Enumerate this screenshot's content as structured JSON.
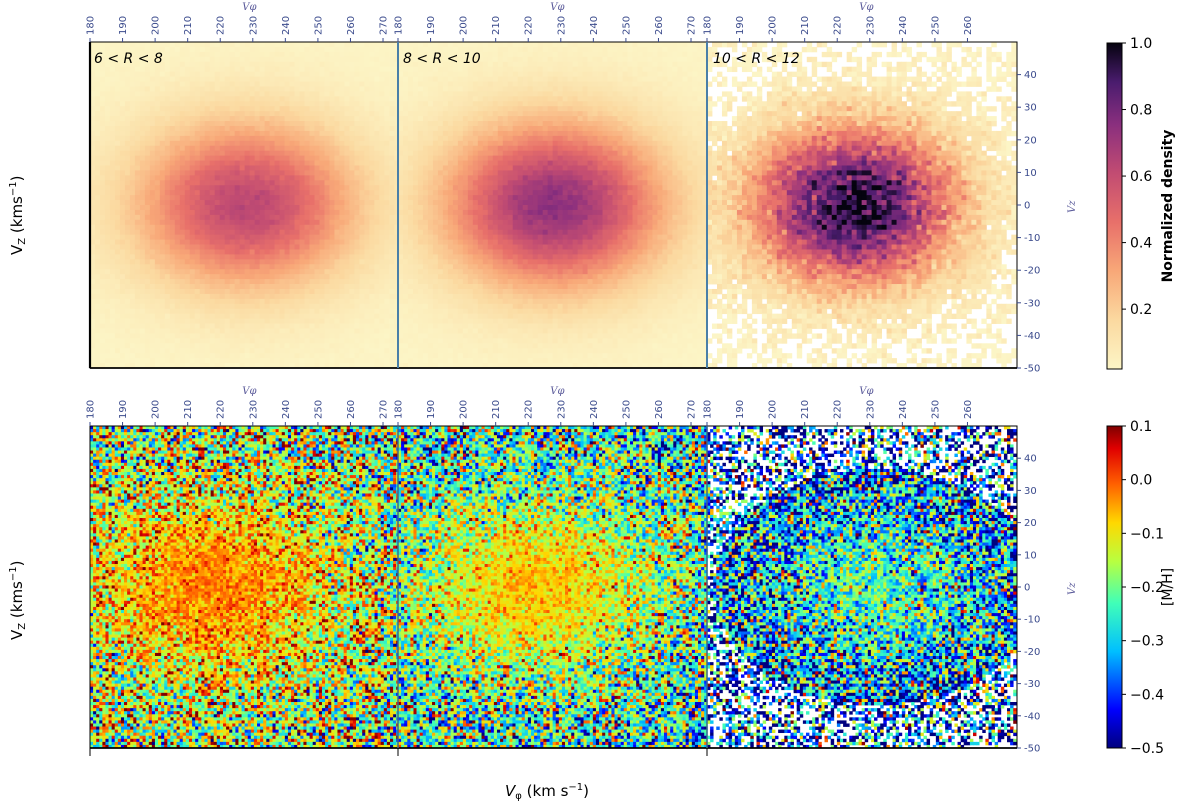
{
  "chart_data": [
    {
      "type": "heatmap",
      "panel": "top",
      "quantity": "Normalized density",
      "xlabel": "V_φ (km s⁻¹)",
      "ylabel": "V_Z (kms⁻¹)",
      "secondary_xlabel": "Vφ",
      "secondary_ylabel": "Vz",
      "xlim": [
        180,
        275
      ],
      "ylim": [
        -50,
        50
      ],
      "x_ticks": [
        180,
        190,
        200,
        210,
        220,
        230,
        240,
        250,
        260,
        270
      ],
      "x_ticks_last_panel": [
        180,
        190,
        200,
        210,
        220,
        230,
        240,
        250,
        260
      ],
      "y_ticks": [
        40,
        30,
        20,
        10,
        0,
        -10,
        -20,
        -30,
        -40,
        -50
      ],
      "subpanels": [
        {
          "label": "6 < R < 8",
          "peak_vphi": 228,
          "peak_vz": 0,
          "peak_value": 0.62
        },
        {
          "label": "8 < R < 10",
          "peak_vphi": 228,
          "peak_vz": 0,
          "peak_value": 0.74
        },
        {
          "label": "10 < R < 12",
          "peak_vphi": 225,
          "peak_vz": 0,
          "peak_value": 1.0
        }
      ],
      "colorbar": {
        "label": "Normalized density",
        "colormap": "magma_r",
        "ticks": [
          "1.0",
          "0.8",
          "0.6",
          "0.4",
          "0.2"
        ],
        "range": [
          0.0,
          1.0
        ]
      }
    },
    {
      "type": "heatmap",
      "panel": "bottom",
      "quantity": "[M/H]",
      "xlabel": "V_φ (km s⁻¹)",
      "ylabel": "V_Z (kms⁻¹)",
      "secondary_xlabel": "Vφ",
      "secondary_ylabel": "Vz",
      "xlim": [
        180,
        275
      ],
      "ylim": [
        -50,
        50
      ],
      "subpanels": [
        {
          "label": "6 < R < 8",
          "core_value": -0.02,
          "edge_value": -0.18
        },
        {
          "label": "8 < R < 10",
          "core_value": -0.07,
          "edge_value": -0.25
        },
        {
          "label": "10 < R < 12",
          "core_value": -0.22,
          "edge_value": -0.38
        }
      ],
      "colorbar": {
        "label": "[M/H]",
        "colormap": "jet",
        "ticks": [
          "0.1",
          "0.0",
          "−0.1",
          "−0.2",
          "−0.3",
          "−0.4",
          "−0.5"
        ],
        "range": [
          -0.5,
          0.1
        ]
      }
    }
  ],
  "labels": {
    "ylabel_top": "V",
    "ylabel_bottom": "V",
    "ylabel_sub": "Z",
    "ylabel_units": "(kms",
    "ylabel_exp": "−1",
    "ylabel_close": ")",
    "xlabel_main": "V",
    "xlabel_sub": "φ",
    "xlabel_units": "(km s",
    "xlabel_exp": "−1",
    "xlabel_close": ")",
    "ann1": "6 < R < 8",
    "ann2": "8 < R < 10",
    "ann3": "10 < R < 12",
    "vphi_sec": "Vφ",
    "vz_sec": "Vz",
    "cb1_label": "Normalized density",
    "cb2_label": "[M/H]"
  }
}
